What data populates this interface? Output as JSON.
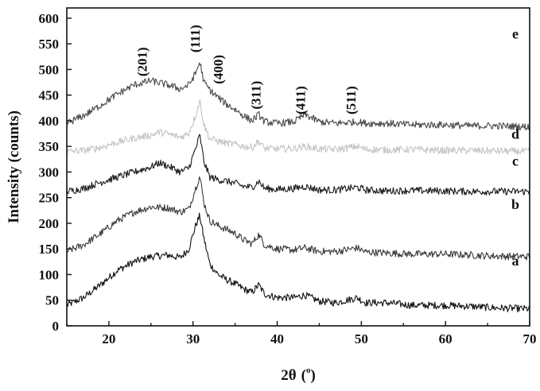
{
  "chart_data": {
    "type": "line",
    "title": "",
    "xlabel": "2θ",
    "xlabel_unit": "o",
    "ylabel": "Intensity (counts)",
    "xlim": [
      15,
      70
    ],
    "ylim": [
      0,
      620
    ],
    "xticks": [
      20,
      30,
      40,
      50,
      60,
      70
    ],
    "yticks": [
      0,
      50,
      100,
      150,
      200,
      250,
      300,
      350,
      400,
      450,
      500,
      550,
      600
    ],
    "grid": false,
    "series": [
      {
        "name": "a",
        "color": "#111111",
        "x": [
          15,
          17,
          19,
          21,
          23,
          25,
          27,
          28.5,
          29.5,
          30.3,
          30.8,
          31.3,
          32,
          33,
          34,
          35,
          36,
          37,
          37.8,
          38.5,
          40,
          42,
          43.3,
          45,
          47,
          49.5,
          50.5,
          53,
          56,
          60,
          63,
          66,
          70
        ],
        "y": [
          40,
          55,
          80,
          108,
          125,
          135,
          138,
          133,
          150,
          195,
          215,
          170,
          120,
          100,
          90,
          82,
          72,
          65,
          80,
          62,
          55,
          55,
          60,
          48,
          45,
          55,
          45,
          45,
          40,
          40,
          38,
          35,
          33
        ]
      },
      {
        "name": "b",
        "color": "#3a3a3a",
        "x": [
          15,
          17,
          19,
          21,
          23,
          25,
          27,
          28.5,
          29.5,
          30.3,
          30.8,
          31.3,
          32,
          33,
          34,
          35,
          36,
          37,
          37.8,
          38.5,
          40,
          42,
          43.3,
          45,
          47,
          49.5,
          50.5,
          53,
          56,
          60,
          63,
          66,
          70
        ],
        "y": [
          145,
          158,
          180,
          205,
          222,
          232,
          230,
          222,
          228,
          268,
          292,
          240,
          205,
          195,
          188,
          180,
          168,
          160,
          178,
          158,
          150,
          148,
          152,
          145,
          145,
          152,
          144,
          142,
          140,
          140,
          138,
          136,
          135
        ]
      },
      {
        "name": "c",
        "color": "#1a1a1a",
        "x": [
          15,
          17,
          19,
          21,
          23,
          25,
          26,
          27,
          28.5,
          29.5,
          30.3,
          30.8,
          31.3,
          32,
          33,
          34,
          35,
          36,
          37,
          37.8,
          38.5,
          40,
          42,
          43.3,
          45,
          47,
          49.5,
          50.5,
          53,
          56,
          60,
          63,
          66,
          70
        ],
        "y": [
          262,
          268,
          280,
          290,
          300,
          310,
          318,
          312,
          300,
          308,
          345,
          372,
          320,
          290,
          285,
          282,
          278,
          272,
          270,
          282,
          268,
          266,
          268,
          272,
          265,
          265,
          270,
          265,
          263,
          264,
          263,
          262,
          262,
          262
        ]
      },
      {
        "name": "d",
        "color": "#c4c4c4",
        "x": [
          15,
          17,
          19,
          21,
          23,
          25,
          26,
          27,
          28.5,
          29.5,
          30.3,
          30.8,
          31.3,
          32,
          33,
          34,
          35,
          36,
          37,
          37.8,
          38.5,
          40,
          42,
          43.3,
          45,
          47,
          49.5,
          50.5,
          53,
          56,
          60,
          63,
          66,
          70
        ],
        "y": [
          340,
          342,
          348,
          358,
          366,
          372,
          378,
          374,
          368,
          376,
          410,
          440,
          392,
          365,
          360,
          356,
          354,
          350,
          348,
          360,
          346,
          345,
          346,
          350,
          345,
          344,
          350,
          344,
          343,
          344,
          342,
          342,
          341,
          340
        ]
      },
      {
        "name": "e",
        "color": "#4a4a4a",
        "x": [
          15,
          17,
          19,
          21,
          23,
          25,
          27,
          28.5,
          29.5,
          30.3,
          30.8,
          31.3,
          32,
          33,
          34,
          35,
          36,
          37,
          37.8,
          38.5,
          40,
          42,
          43.3,
          45,
          47,
          49.5,
          50.5,
          53,
          56,
          60,
          63,
          66,
          70
        ],
        "y": [
          395,
          410,
          430,
          452,
          470,
          478,
          470,
          462,
          470,
          492,
          515,
          475,
          460,
          445,
          432,
          422,
          410,
          400,
          412,
          398,
          395,
          398,
          412,
          398,
          395,
          398,
          395,
          395,
          392,
          392,
          390,
          390,
          388
        ]
      }
    ],
    "peak_labels": [
      {
        "text": "(201)",
        "x": 24.5,
        "y": 515
      },
      {
        "text": "(111)",
        "x": 30.8,
        "y": 560
      },
      {
        "text": "(400)",
        "x": 33.5,
        "y": 500
      },
      {
        "text": "(311)",
        "x": 38,
        "y": 450
      },
      {
        "text": "(411)",
        "x": 43.3,
        "y": 440
      },
      {
        "text": "(511)",
        "x": 49.3,
        "y": 440
      }
    ],
    "curve_labels": [
      {
        "text": "e",
        "x": 68.3,
        "y": 560
      },
      {
        "text": "d",
        "x": 68.3,
        "y": 365
      },
      {
        "text": "c",
        "x": 68.3,
        "y": 312
      },
      {
        "text": "b",
        "x": 68.3,
        "y": 228
      },
      {
        "text": "a",
        "x": 68.3,
        "y": 118
      }
    ]
  }
}
